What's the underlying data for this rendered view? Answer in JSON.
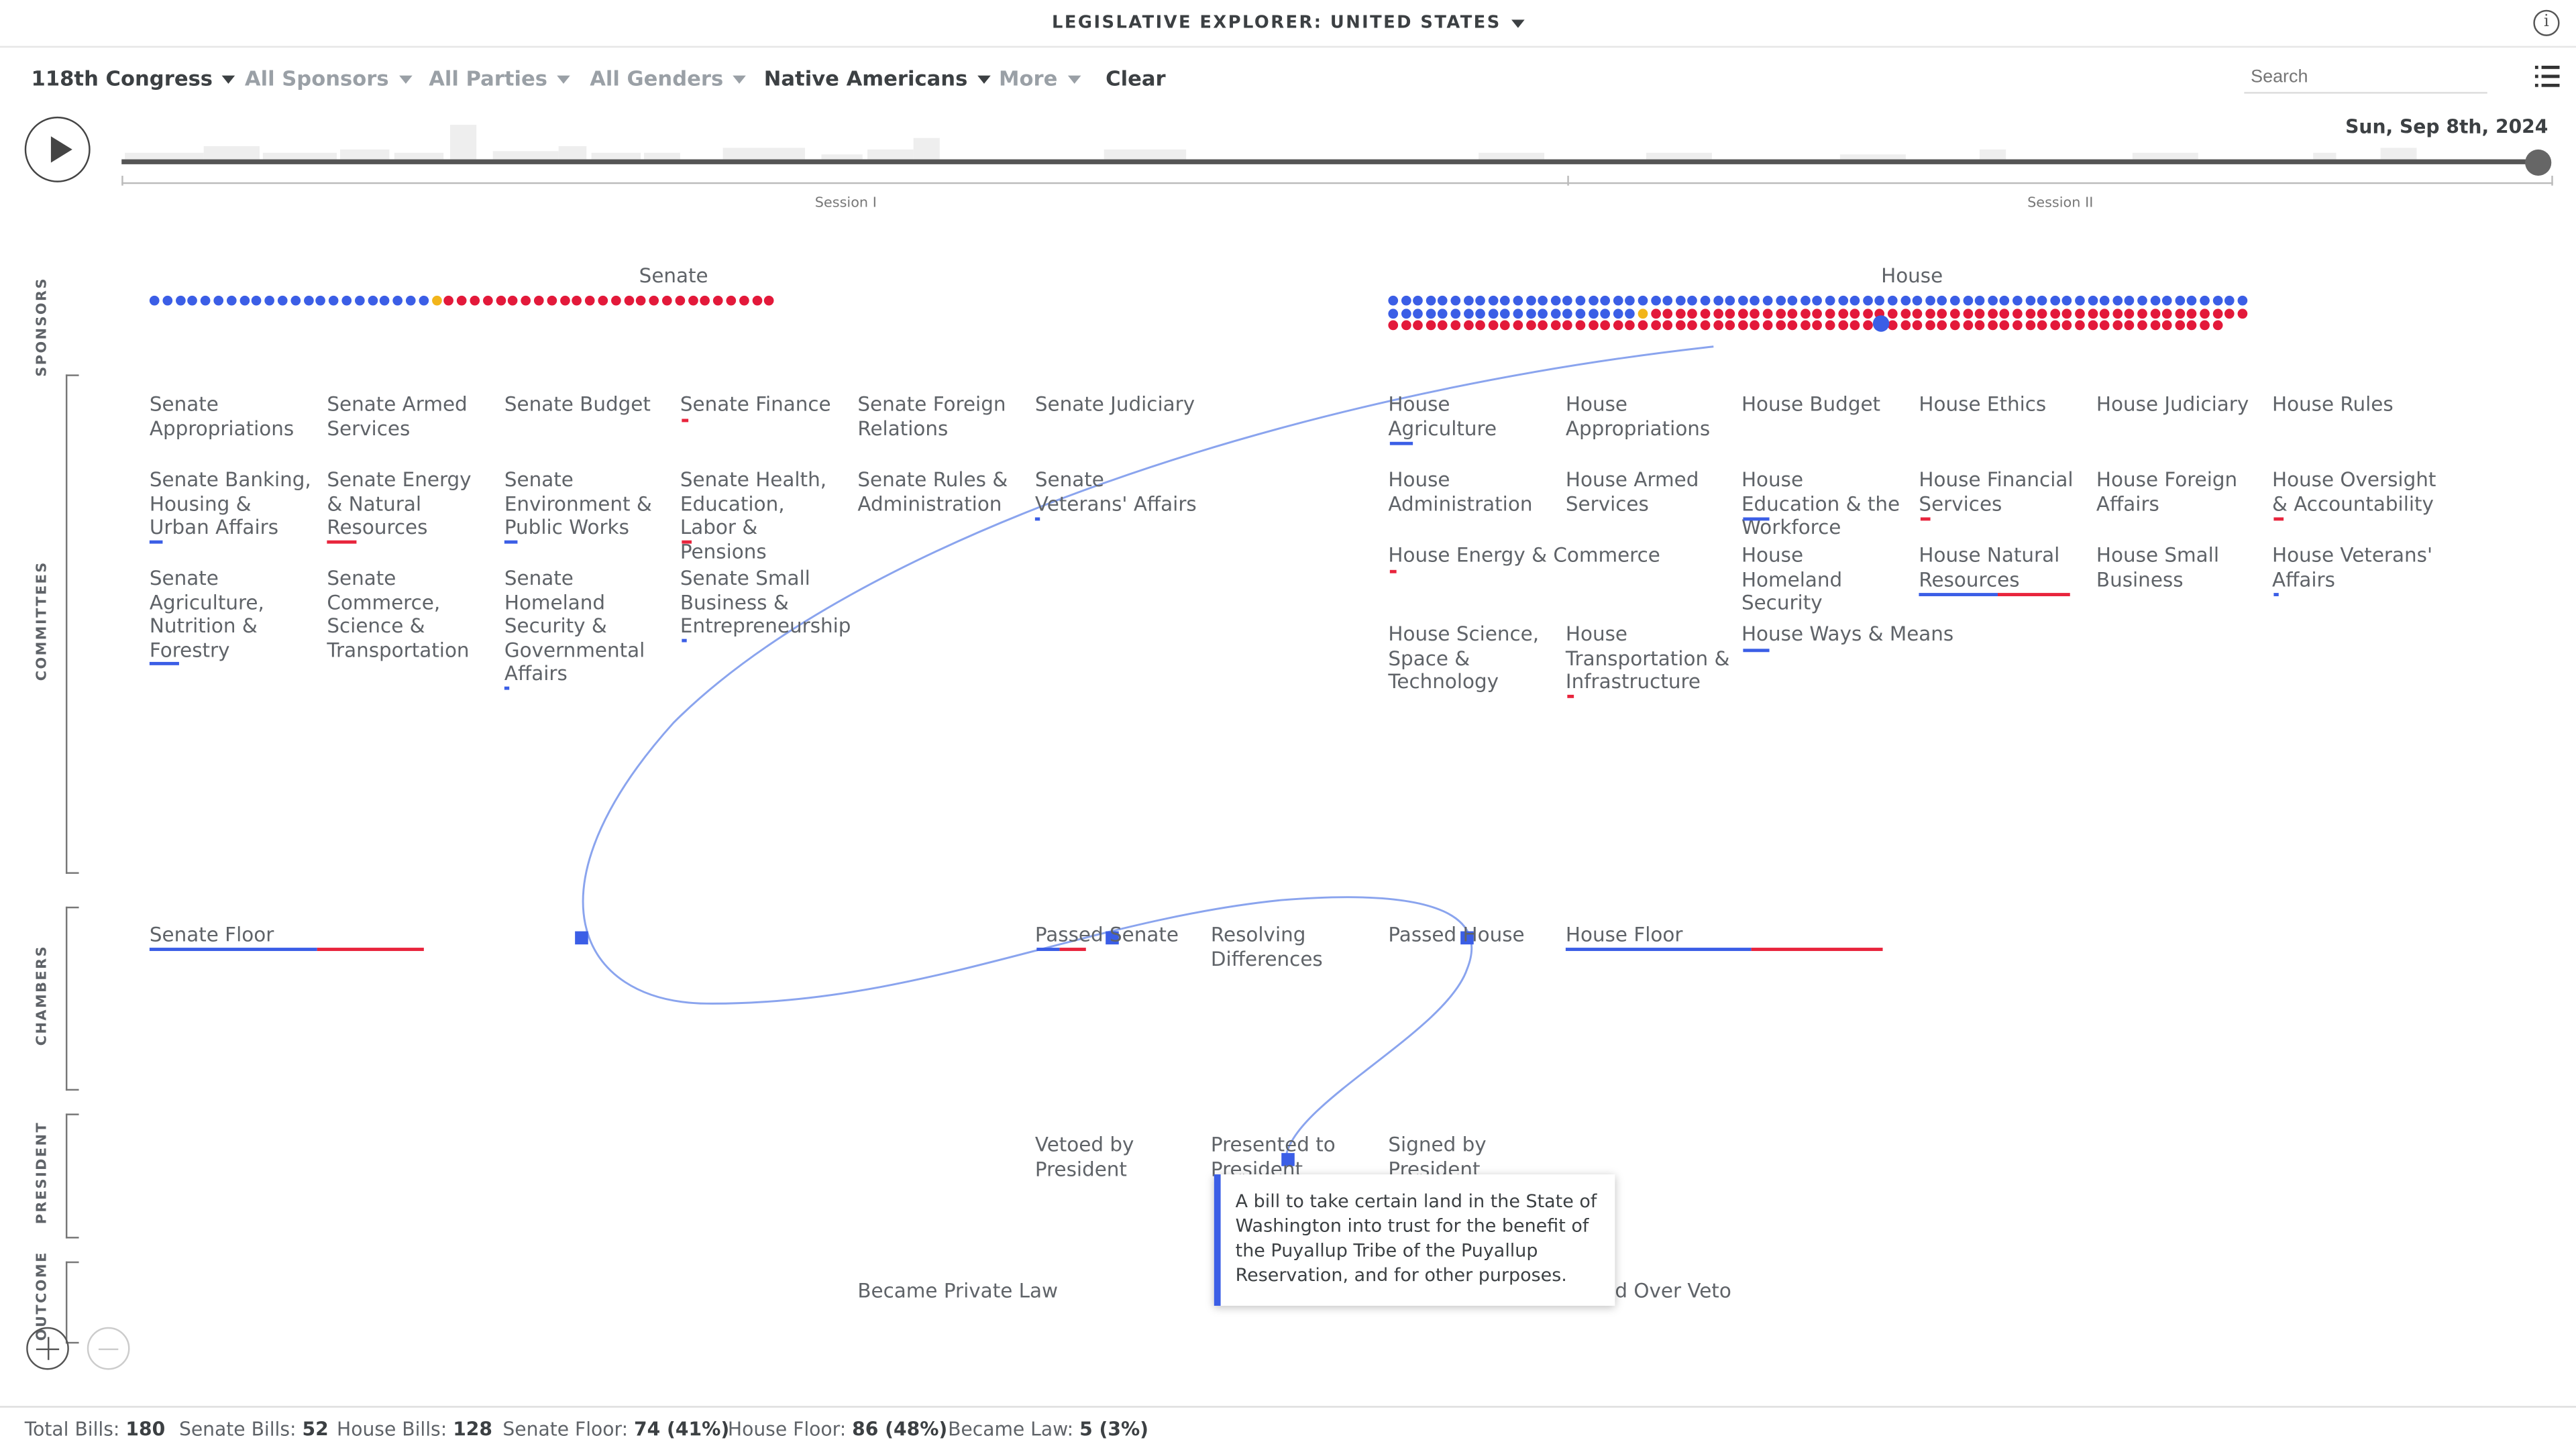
{
  "header": {
    "app_title": "LEGISLATIVE EXPLORER: UNITED STATES",
    "info_icon": "i"
  },
  "filters": {
    "congress": "118th Congress",
    "sponsors": "All Sponsors",
    "parties": "All Parties",
    "genders": "All Genders",
    "topic": "Native Americans",
    "more": "More",
    "clear": "Clear"
  },
  "search": {
    "placeholder": "Search"
  },
  "timeline": {
    "date": "Sun, Sep 8th, 2024",
    "session1": "Session I",
    "session2": "Session II"
  },
  "rows": {
    "sponsors": "SPONSORS",
    "committees": "COMMITTEES",
    "chambers": "CHAMBERS",
    "president": "PRESIDENT",
    "outcome": "OUTCOME"
  },
  "chambers": {
    "senate": "Senate",
    "house": "House"
  },
  "senate_committees": [
    "Senate Appropriations",
    "Senate Armed Services",
    "Senate Budget",
    "Senate Finance",
    "Senate Foreign Relations",
    "Senate Judiciary",
    "Senate Banking, Housing & Urban Affairs",
    "Senate Energy & Natural Resources",
    "Senate Environment & Public Works",
    "Senate Health, Education, Labor & Pensions",
    "Senate Rules & Administration",
    "Senate Veterans' Affairs",
    "Senate Agriculture, Nutrition & Forestry",
    "Senate Commerce, Science & Transportation",
    "Senate Homeland Security & Governmental Affairs",
    "Senate Small Business & Entrepreneurship"
  ],
  "house_committees": [
    "House Agriculture",
    "House Appropriations",
    "House Budget",
    "House Ethics",
    "House Judiciary",
    "House Rules",
    "House Administration",
    "House Armed Services",
    "House Education & the Workforce",
    "House Financial Services",
    "House Foreign Affairs",
    "House Oversight & Accountability",
    "House Energy & Commerce",
    "House Homeland Security",
    "House Natural Resources",
    "House Small Business",
    "House Veterans' Affairs",
    "House Science, Space & Technology",
    "House Transportation & Infrastructure",
    "House Ways & Means"
  ],
  "chamber_nodes": {
    "senate_floor": "Senate Floor",
    "passed_senate": "Passed Senate",
    "resolving": "Resolving Differences",
    "passed_house": "Passed House",
    "house_floor": "House Floor"
  },
  "president_nodes": {
    "vetoed": "Vetoed by President",
    "presented": "Presented to President",
    "signed": "Signed by President"
  },
  "outcome_nodes": {
    "private_law": "Became Private Law",
    "over_veto": "d Over Veto"
  },
  "tooltip": {
    "text": "A bill to take certain land in the State of Washington into trust for the benefit of the Puyallup Tribe of the Puyallup Reservation, and for other purposes."
  },
  "footer": {
    "total_label": "Total Bills:",
    "total": "180",
    "senate_label": "Senate Bills:",
    "senate": "52",
    "house_label": "House Bills:",
    "house": "128",
    "sfloor_label": "Senate Floor:",
    "sfloor": "74 (41%)",
    "hfloor_label": "House Floor:",
    "hfloor": "86 (48%)",
    "law_label": "Became Law:",
    "law": "5 (3%)"
  },
  "sponsors": {
    "senate_dem": 22,
    "senate_ind": 1,
    "senate_rep": 26,
    "house_dem": 89,
    "house_ind": 1,
    "house_rep": 115
  },
  "colors": {
    "democrat": "#3b5ee6",
    "republican": "#e3193a",
    "independent": "#f2b51a"
  }
}
